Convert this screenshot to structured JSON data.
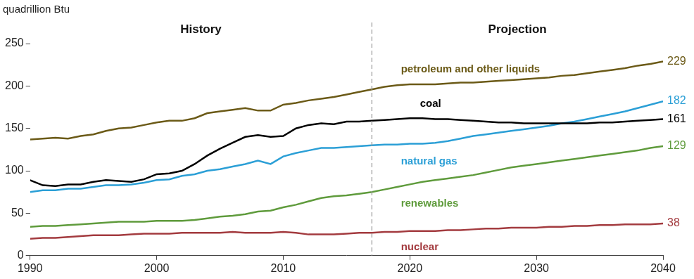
{
  "chart_data": {
    "type": "line",
    "y_label": "quadrillion Btu",
    "annotations": [
      "History",
      "Projection"
    ],
    "projection_start": 2017,
    "x": [
      1990,
      1991,
      1992,
      1993,
      1994,
      1995,
      1996,
      1997,
      1998,
      1999,
      2000,
      2001,
      2002,
      2003,
      2004,
      2005,
      2006,
      2007,
      2008,
      2009,
      2010,
      2011,
      2012,
      2013,
      2014,
      2015,
      2016,
      2017,
      2018,
      2019,
      2020,
      2021,
      2022,
      2023,
      2024,
      2025,
      2026,
      2027,
      2028,
      2029,
      2030,
      2031,
      2032,
      2033,
      2034,
      2035,
      2036,
      2037,
      2038,
      2039,
      2040
    ],
    "series": [
      {
        "name": "petroleum and other liquids",
        "color": "#6b5a17",
        "values": [
          137,
          138,
          139,
          138,
          141,
          143,
          147,
          150,
          151,
          154,
          157,
          159,
          159,
          162,
          168,
          170,
          172,
          174,
          171,
          171,
          178,
          180,
          183,
          185,
          187,
          190,
          193,
          196,
          199,
          201,
          202,
          202,
          202,
          203,
          204,
          204,
          205,
          206,
          207,
          208,
          209,
          210,
          212,
          213,
          215,
          217,
          219,
          221,
          224,
          226,
          229
        ]
      },
      {
        "name": "coal",
        "color": "#000000",
        "values": [
          89,
          83,
          82,
          84,
          84,
          87,
          89,
          88,
          87,
          90,
          96,
          97,
          100,
          108,
          118,
          126,
          133,
          140,
          142,
          140,
          141,
          150,
          154,
          156,
          155,
          158,
          158,
          159,
          160,
          161,
          162,
          162,
          161,
          161,
          160,
          159,
          158,
          157,
          157,
          156,
          156,
          156,
          156,
          156,
          156,
          157,
          157,
          158,
          159,
          160,
          161
        ]
      },
      {
        "name": "natural gas",
        "color": "#2b9fd6",
        "values": [
          75,
          77,
          77,
          79,
          79,
          81,
          83,
          83,
          84,
          86,
          89,
          90,
          94,
          96,
          100,
          102,
          105,
          108,
          112,
          108,
          117,
          121,
          124,
          127,
          127,
          128,
          129,
          130,
          131,
          131,
          132,
          132,
          133,
          135,
          138,
          141,
          143,
          145,
          147,
          149,
          151,
          153,
          156,
          158,
          161,
          164,
          167,
          170,
          174,
          178,
          182
        ]
      },
      {
        "name": "renewables",
        "color": "#5f9b3c",
        "values": [
          34,
          35,
          35,
          36,
          37,
          38,
          39,
          40,
          40,
          40,
          41,
          41,
          41,
          42,
          44,
          46,
          47,
          49,
          52,
          53,
          57,
          60,
          64,
          68,
          70,
          71,
          73,
          75,
          78,
          81,
          84,
          87,
          89,
          91,
          93,
          95,
          98,
          101,
          104,
          106,
          108,
          110,
          112,
          114,
          116,
          118,
          120,
          122,
          124,
          127,
          129
        ]
      },
      {
        "name": "nuclear",
        "color": "#a33b3f",
        "values": [
          20,
          21,
          21,
          22,
          23,
          24,
          24,
          24,
          25,
          26,
          26,
          26,
          27,
          27,
          27,
          27,
          28,
          27,
          27,
          27,
          28,
          27,
          25,
          25,
          25,
          26,
          27,
          27,
          28,
          28,
          29,
          29,
          29,
          30,
          30,
          31,
          32,
          32,
          33,
          33,
          33,
          34,
          34,
          35,
          35,
          36,
          36,
          37,
          37,
          37,
          38
        ]
      }
    ],
    "xlim": [
      1990,
      2040
    ],
    "xticks": [
      1990,
      2000,
      2010,
      2020,
      2030,
      2040
    ],
    "ylim": [
      0,
      250
    ],
    "yticks": [
      0,
      50,
      100,
      150,
      200,
      250
    ],
    "grid": false
  }
}
